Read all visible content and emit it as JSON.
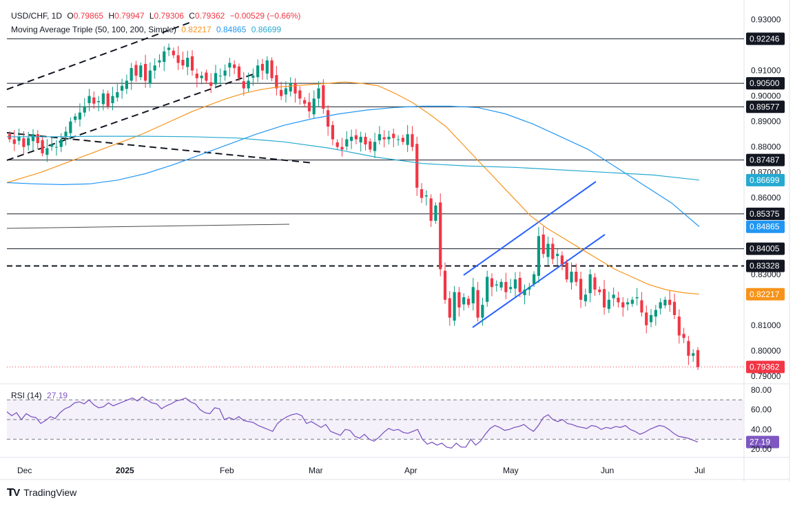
{
  "header": {
    "symbol": "USD/CHF, 1D",
    "ohlc": {
      "o_label": "O",
      "o": "0.79865",
      "h_label": "H",
      "h": "0.79947",
      "l_label": "L",
      "l": "0.79306",
      "c_label": "C",
      "c": "0.79362",
      "change": "−0.00529 (−0.66%)"
    },
    "ma_title": "Moving Average Triple (50, 100, 200, Simple)",
    "ma_values": [
      "0.82217",
      "0.84865",
      "0.86699"
    ]
  },
  "rsi_header": {
    "title": "RSI (14)",
    "value": "27.19"
  },
  "colors": {
    "up": "#089981",
    "down": "#f23645",
    "ma50": "#f7931a",
    "ma100": "#2196f3",
    "ma200": "#26a9cf",
    "rsi": "#7e57c2",
    "trend": "#2962ff",
    "price_line": "#f23645"
  },
  "footer": {
    "brand": "TradingView"
  },
  "chart_data": [
    {
      "type": "candlestick",
      "y_axis_ticks": [
        "0.93000",
        "0.91000",
        "0.90000",
        "0.89000",
        "0.88000",
        "0.87000",
        "0.86000",
        "0.83000",
        "0.81000",
        "0.80000",
        "0.79000"
      ],
      "ylim": [
        0.787,
        0.935
      ],
      "x_axis_ticks": [
        "Dec",
        "2025",
        "Feb",
        "Mar",
        "Apr",
        "May",
        "Jun",
        "Jul"
      ],
      "horizontal_levels": [
        {
          "value": 0.92246,
          "label": "0.92246",
          "style": "solid"
        },
        {
          "value": 0.905,
          "label": "0.90500",
          "style": "solid"
        },
        {
          "value": 0.89577,
          "label": "0.89577",
          "style": "solid"
        },
        {
          "value": 0.87487,
          "label": "0.87487",
          "style": "solid"
        },
        {
          "value": 0.85375,
          "label": "0.85375",
          "style": "solid"
        },
        {
          "value": 0.84005,
          "label": "0.84005",
          "style": "solid"
        },
        {
          "value": 0.83328,
          "label": "0.83328",
          "style": "dashed"
        }
      ],
      "badges": [
        {
          "value": 0.86699,
          "label": "0.86699",
          "series": "ma200"
        },
        {
          "value": 0.84865,
          "label": "0.84865",
          "series": "ma100"
        },
        {
          "value": 0.82217,
          "label": "0.82217",
          "series": "ma50"
        },
        {
          "value": 0.79362,
          "label": "0.79362",
          "series": "price"
        }
      ],
      "closes": [
        0.883,
        0.8812,
        0.884,
        0.88,
        0.8835,
        0.885,
        0.8815,
        0.8775,
        0.8795,
        0.881,
        0.88,
        0.883,
        0.886,
        0.89,
        0.892,
        0.8935,
        0.896,
        0.9,
        0.897,
        0.898,
        0.901,
        0.896,
        0.9,
        0.9015,
        0.904,
        0.906,
        0.911,
        0.908,
        0.912,
        0.906,
        0.91,
        0.912,
        0.914,
        0.9175,
        0.919,
        0.916,
        0.913,
        0.912,
        0.915,
        0.91,
        0.907,
        0.908,
        0.906,
        0.904,
        0.909,
        0.908,
        0.91,
        0.913,
        0.911,
        0.907,
        0.903,
        0.906,
        0.908,
        0.912,
        0.91,
        0.914,
        0.907,
        0.903,
        0.9,
        0.903,
        0.905,
        0.901,
        0.899,
        0.897,
        0.894,
        0.899,
        0.903,
        0.895,
        0.888,
        0.883,
        0.88,
        0.879,
        0.883,
        0.884,
        0.883,
        0.884,
        0.881,
        0.879,
        0.882,
        0.885,
        0.883,
        0.884,
        0.8835,
        0.883,
        0.882,
        0.885,
        0.88,
        0.864,
        0.86,
        0.861,
        0.851,
        0.857,
        0.832,
        0.82,
        0.813,
        0.823,
        0.817,
        0.821,
        0.818,
        0.825,
        0.813,
        0.818,
        0.829,
        0.825,
        0.826,
        0.827,
        0.823,
        0.825,
        0.828,
        0.823,
        0.824,
        0.825,
        0.83,
        0.845,
        0.838,
        0.842,
        0.836,
        0.838,
        0.834,
        0.828,
        0.831,
        0.827,
        0.82,
        0.822,
        0.83,
        0.824,
        0.823,
        0.817,
        0.82,
        0.822,
        0.819,
        0.817,
        0.819,
        0.82,
        0.821,
        0.815,
        0.81,
        0.814,
        0.816,
        0.819,
        0.82,
        0.818,
        0.814,
        0.806,
        0.805,
        0.798,
        0.799,
        0.7936
      ],
      "ma50": [
        0.866,
        0.868,
        0.87,
        0.8725,
        0.875,
        0.8775,
        0.88,
        0.8825,
        0.885,
        0.888,
        0.891,
        0.894,
        0.8965,
        0.899,
        0.901,
        0.9025,
        0.9035,
        0.904,
        0.9045,
        0.905,
        0.9055,
        0.905,
        0.904,
        0.901,
        0.8975,
        0.893,
        0.888,
        0.881,
        0.874,
        0.867,
        0.86,
        0.853,
        0.848,
        0.844,
        0.84,
        0.836,
        0.832,
        0.829,
        0.826,
        0.824,
        0.8228,
        0.8222
      ],
      "ma100": [
        0.866,
        0.8655,
        0.8652,
        0.8655,
        0.867,
        0.8695,
        0.873,
        0.877,
        0.881,
        0.885,
        0.8885,
        0.891,
        0.893,
        0.8945,
        0.8955,
        0.896,
        0.896,
        0.8955,
        0.893,
        0.889,
        0.884,
        0.879,
        0.872,
        0.865,
        0.858,
        0.8487
      ],
      "ma200": [
        0.884,
        0.884,
        0.8842,
        0.8842,
        0.884,
        0.8835,
        0.882,
        0.8795,
        0.876,
        0.8735,
        0.8725,
        0.872,
        0.871,
        0.87,
        0.869,
        0.867
      ],
      "rsi": {
        "ylim": [
          15,
          85
        ],
        "ticks": [
          "80.00",
          "60.00",
          "40.00",
          "27.19",
          "20.00"
        ],
        "levels": [
          70,
          50,
          30
        ],
        "values": [
          58,
          54,
          57,
          50,
          56,
          53,
          52,
          46,
          49,
          53,
          51,
          57,
          61,
          63,
          67,
          68,
          66,
          70,
          65,
          62,
          63,
          67,
          64,
          66,
          68,
          70,
          72,
          69,
          73,
          70,
          67,
          66,
          61,
          64,
          66,
          69,
          70,
          72,
          68,
          66,
          60,
          57,
          56,
          62,
          61,
          50,
          52,
          50,
          53,
          49,
          48,
          47,
          44,
          42,
          40,
          38,
          46,
          50,
          53,
          55,
          56,
          54,
          46,
          48,
          45,
          42,
          45,
          38,
          36,
          34,
          40,
          39,
          33,
          31,
          35,
          30,
          28,
          32,
          37,
          41,
          39,
          40,
          37,
          36,
          38,
          40,
          30,
          25,
          27,
          24,
          26,
          22,
          21,
          26,
          22,
          22,
          30,
          24,
          28,
          35,
          41,
          44,
          42,
          39,
          40,
          42,
          43,
          45,
          41,
          38,
          44,
          52,
          55,
          50,
          48,
          50,
          46,
          45,
          43,
          42,
          41,
          44,
          43,
          40,
          42,
          41,
          43,
          42,
          44,
          40,
          38,
          35,
          37,
          40,
          42,
          44,
          43,
          40,
          36,
          33,
          32,
          31,
          29,
          27.19
        ]
      }
    }
  ]
}
